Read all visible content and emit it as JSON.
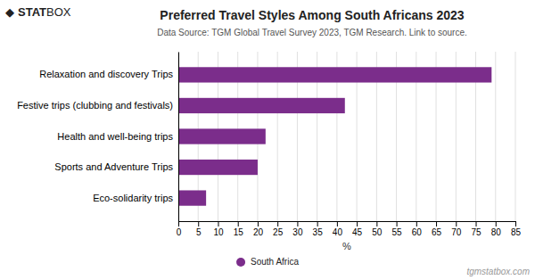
{
  "chart_data": {
    "type": "bar",
    "orientation": "horizontal",
    "title": "Preferred Travel Styles Among South Africans 2023",
    "subtitle": "Data Source: TGM Global Travel Survey 2023, TGM Research. Link to source.",
    "categories": [
      "Relaxation and discovery Trips",
      "Festive trips (clubbing and festivals)",
      "Health and well-being trips",
      "Sports and Adventure Trips",
      "Eco-solidarity trips"
    ],
    "series": [
      {
        "name": "South Africa",
        "color": "#7B2D8B",
        "values": [
          79,
          42,
          22,
          20,
          7
        ]
      }
    ],
    "xlabel": "%",
    "xlim": [
      0,
      85
    ],
    "xticks": [
      0,
      5,
      10,
      15,
      20,
      25,
      30,
      35,
      40,
      45,
      50,
      55,
      60,
      65,
      70,
      75,
      80,
      85
    ],
    "grid": true,
    "legend": "bottom",
    "annotations": [
      "◆",
      "STAT",
      "BOX",
      "tgmstatbox.com"
    ]
  }
}
